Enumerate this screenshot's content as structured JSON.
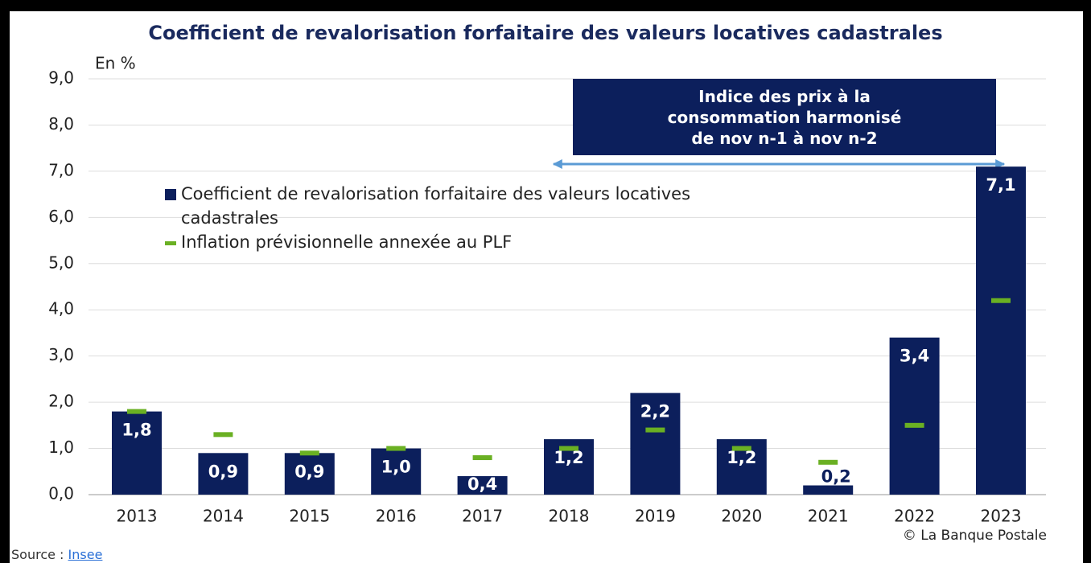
{
  "chart_data": {
    "type": "bar",
    "title": "Coefficient de revalorisation forfaitaire des valeurs locatives cadastrales",
    "y_label": "En %",
    "categories": [
      "2013",
      "2014",
      "2015",
      "2016",
      "2017",
      "2018",
      "2019",
      "2020",
      "2021",
      "2022",
      "2023"
    ],
    "series": [
      {
        "name": "Coefficient de revalorisation forfaitaire des valeurs locatives cadastrales",
        "style": "bar",
        "color": "#0c1f5c",
        "values": [
          1.8,
          0.9,
          0.9,
          1.0,
          0.4,
          1.2,
          2.2,
          1.2,
          0.2,
          3.4,
          7.1
        ],
        "value_labels": [
          "1,8",
          "0,9",
          "0,9",
          "1,0",
          "0,4",
          "1,2",
          "2,2",
          "1,2",
          "0,2",
          "3,4",
          "7,1"
        ]
      },
      {
        "name": "Inflation prévisionnelle annexée au PLF",
        "style": "dash",
        "color": "#6ab023",
        "values": [
          1.8,
          1.3,
          0.9,
          1.0,
          0.8,
          1.0,
          1.4,
          1.0,
          0.7,
          1.5,
          4.2
        ]
      }
    ],
    "ylim": [
      0,
      9
    ],
    "yticks": [
      {
        "value": 0,
        "label": "0,0"
      },
      {
        "value": 1,
        "label": "1,0"
      },
      {
        "value": 2,
        "label": "2,0"
      },
      {
        "value": 3,
        "label": "3,0"
      },
      {
        "value": 4,
        "label": "4,0"
      },
      {
        "value": 5,
        "label": "5,0"
      },
      {
        "value": 6,
        "label": "6,0"
      },
      {
        "value": 7,
        "label": "7,0"
      },
      {
        "value": 8,
        "label": "8,0"
      },
      {
        "value": 9,
        "label": "9,0"
      }
    ],
    "grid": true,
    "annotation": [
      "Indice des prix à la",
      "consommation harmonisé",
      "de nov n-1 à nov n-2"
    ],
    "credit": "© La Banque Postale",
    "source_label": "Source :",
    "source_link": "Insee"
  }
}
